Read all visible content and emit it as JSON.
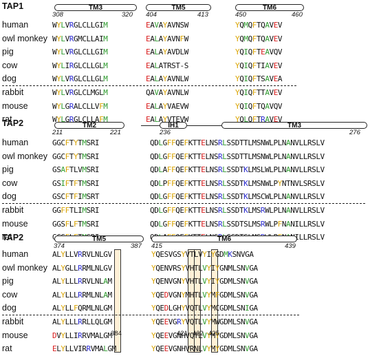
{
  "panels": [
    {
      "label": "TAP1",
      "species": [
        "human",
        "owl monkey",
        "pig",
        "cow",
        "dog",
        "rabbit",
        "mouse",
        "rat"
      ],
      "segments": [
        {
          "name": "TM3",
          "start": "308",
          "end": "320",
          "seqs": [
            "WYLVRGLCLLGIM",
            "WYLVRGMCLLAIM",
            "WYLVRGLCLLGIM",
            "WYLIRGLCLLGLM",
            "WYLVRGLCLLGLM",
            "WYLVRGLCLMGLM",
            "WYLGRALCLLVFM",
            "WYLGRGLCLLAFM"
          ]
        },
        {
          "name": "TM5",
          "start": "404",
          "end": "413",
          "seqs": [
            "EAVAYAVNSW",
            "EALAYAVNFW",
            "EALAYAVDLW",
            "EALATRST-S",
            "EALAYAVNLW",
            "QAVAYAVNLW",
            "EALAYVAEVW",
            "EALAYVTEVW"
          ]
        },
        {
          "name": "TM6",
          "start": "450",
          "end": "460",
          "seqs": [
            "YQMQFTQAVEV",
            "YQMQFTQAVEV",
            "YQIQFTEAVQV",
            "YQIQFTIAVEV",
            "YQIQFTSAVEA",
            "YQIQFTTAVEV",
            "YQIQFTQAVQV",
            "YQLQFTRAVEV"
          ]
        }
      ]
    },
    {
      "label": "TAP2",
      "species": [
        "human",
        "owl monkey",
        "pig",
        "cow",
        "dog",
        "rabbit",
        "mouse",
        "rat"
      ],
      "segments": [
        {
          "name": "TM2",
          "start": "211",
          "end": "221",
          "seqs": [
            "GGCFTYTMSRI",
            "GGCFTYTMSRI",
            "GSAFTLVMSRI",
            "GSIFTFTMSRI",
            "GSCFTFIMSRT",
            "GGFFTLIMSRI",
            "GGSFLFTMSRI",
            "GGSFLFTMSRI"
          ]
        },
        {
          "name": "IH1",
          "start": "236",
          "end": "276",
          "name2": "TM3",
          "seqs": [
            "QDLGFFQEFKTTELNSRLSSDTTLMSNWLPLNANVLLRSLV",
            "QDLGFFQEFKTTELNSRLSSDTTLMSNWLPLNANVLLRSLV",
            "QDLAFFQEFKTTELNSRLSSDTKLMSLWLPLNANVLLRSLV",
            "QDLPFFQEFKTTELNSRLSSDTKLMSNWLPYNTNVLSRSLV",
            "QDLGFFQEFKTTELNSRLSSDTKLMSCWLPLNANVLLRSLV",
            "QDLGFFQEFKTTELNSRLSSDTKLMSRWLPLNANVLLRSLV",
            "QDLGFFQEFKTTELNSRLSSDTSLMSRWLPFNANILLRSLV",
            "QDLAFFQEFKTTELNSRLSSDTSLMSRWLPFNANILLRSLV"
          ]
        }
      ]
    },
    {
      "label": "TAP2",
      "species": [
        "human",
        "owl monkey",
        "pig",
        "cow",
        "dog",
        "rabbit",
        "mouse",
        "rat"
      ],
      "segments": [
        {
          "name": "TM5",
          "start": "374",
          "end": "387",
          "seqs": [
            "ALYLLVRRVLNLGV",
            "ALYGLLRRMLNLGV",
            "ALYLLLRRVLNLAM",
            "ALYLLLRRMLNLAM",
            "ALYLLFQRMLNLGM",
            "ALYLLLRRLLQLGM",
            "DVYLLIRRVMALGM",
            "ELYLLVIRRVMALGM"
          ]
        },
        {
          "name": "TM6",
          "start": "415",
          "end": "439",
          "seqs": [
            "YQESVGSYVTLVYIYGDMKSNVGA",
            "YQENVRSYVHTLVYIYGNMLSNVGA",
            "YQENVGNYVHTLVYIYGDMLSNVGA",
            "YQEDVGNYMHTLVYMFGDMLSNVGA",
            "YQEDLGHYVQTLVYMCGDMLSNIGA",
            "YQEEVGRYVQTLVYMWGDMLSNVGA",
            "YQEEVGNHVQTLVYMYGDMLSNVGA",
            "YQEEVGNHVRNLVYMYGDMLSNVGA"
          ]
        }
      ],
      "residue_marks": [
        "384",
        "421",
        "422",
        "425"
      ]
    }
  ]
}
